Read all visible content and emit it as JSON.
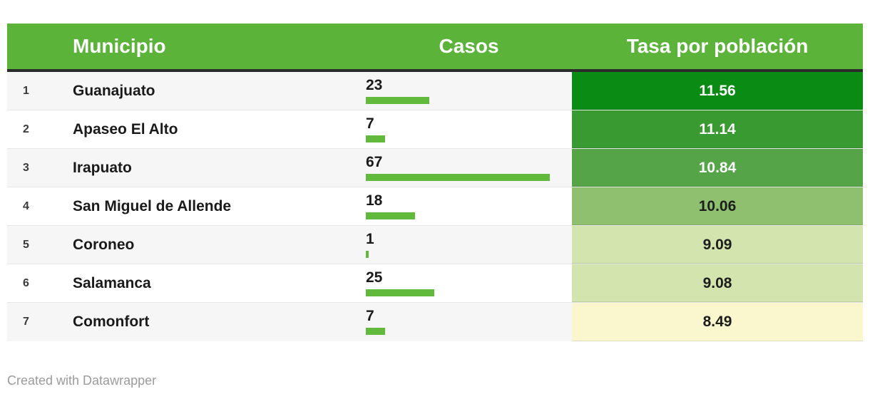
{
  "colors": {
    "header_bg": "#5cb33a",
    "bar_green": "#61ba3c",
    "header_border": "#2b2b2b",
    "row_alt_bg": "#f6f6f6",
    "credit_text": "#9b9b9b"
  },
  "table": {
    "columns": {
      "municipio": "Municipio",
      "casos": "Casos",
      "tasa": "Tasa por población"
    },
    "casos_max": 67,
    "rows": [
      {
        "rank": "1",
        "municipio": "Guanajuato",
        "casos": 23,
        "tasa": "11.56",
        "tasa_bg": "#0a8c14",
        "tasa_text": "#ffffff"
      },
      {
        "rank": "2",
        "municipio": "Apaseo El Alto",
        "casos": 7,
        "tasa": "11.14",
        "tasa_bg": "#3a9a32",
        "tasa_text": "#ffffff"
      },
      {
        "rank": "3",
        "municipio": "Irapuato",
        "casos": 67,
        "tasa": "10.84",
        "tasa_bg": "#55a447",
        "tasa_text": "#ffffff"
      },
      {
        "rank": "4",
        "municipio": "San Miguel de Allende",
        "casos": 18,
        "tasa": "10.06",
        "tasa_bg": "#8ec06f",
        "tasa_text": "#1d1d1d"
      },
      {
        "rank": "5",
        "municipio": "Coroneo",
        "casos": 1,
        "tasa": "9.09",
        "tasa_bg": "#d3e4ae",
        "tasa_text": "#1d1d1d"
      },
      {
        "rank": "6",
        "municipio": "Salamanca",
        "casos": 25,
        "tasa": "9.08",
        "tasa_bg": "#d3e4ae",
        "tasa_text": "#1d1d1d"
      },
      {
        "rank": "7",
        "municipio": "Comonfort",
        "casos": 7,
        "tasa": "8.49",
        "tasa_bg": "#faf7ce",
        "tasa_text": "#1d1d1d"
      }
    ]
  },
  "footer": {
    "credit": "Created with Datawrapper"
  },
  "chart_data": {
    "type": "table",
    "title": "",
    "columns": [
      "rank",
      "Municipio",
      "Casos",
      "Tasa por población"
    ],
    "rows": [
      [
        1,
        "Guanajuato",
        23,
        11.56
      ],
      [
        2,
        "Apaseo El Alto",
        7,
        11.14
      ],
      [
        3,
        "Irapuato",
        67,
        10.84
      ],
      [
        4,
        "San Miguel de Allende",
        18,
        10.06
      ],
      [
        5,
        "Coroneo",
        1,
        9.09
      ],
      [
        6,
        "Salamanca",
        25,
        9.08
      ],
      [
        7,
        "Comonfort",
        7,
        8.49
      ]
    ],
    "casos_bar_max": 67,
    "legend_position": "none",
    "notes": "Casos column rendered as left-aligned green bars scaled to max value 67; Tasa column rendered as green-to-yellow heatmap cells with white text on dark greens"
  }
}
